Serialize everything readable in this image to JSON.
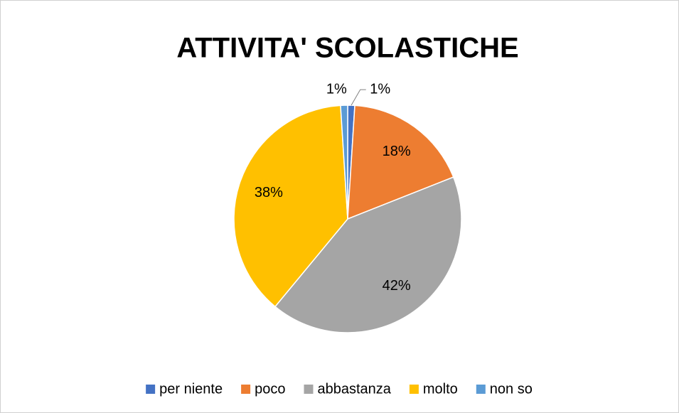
{
  "chart_data": {
    "type": "pie",
    "title": "ATTIVITA' SCOLASTICHE",
    "categories": [
      "per niente",
      "poco",
      "abbastanza",
      "molto",
      "non so"
    ],
    "values": [
      1,
      18,
      42,
      38,
      1
    ],
    "value_labels": [
      "1%",
      "18%",
      "42%",
      "38%",
      "1%"
    ],
    "colors": [
      "#4472c4",
      "#ed7d31",
      "#a5a5a5",
      "#ffc000",
      "#5b9bd5"
    ],
    "legend": "bottom"
  }
}
